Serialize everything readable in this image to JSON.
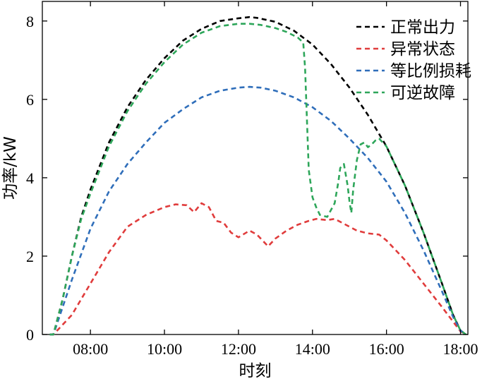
{
  "chart_data": {
    "type": "line",
    "xlabel": "时刻",
    "ylabel": "功率/kW",
    "xlim": [
      6.7,
      18.2
    ],
    "ylim": [
      0,
      8.5
    ],
    "xticks": [
      8,
      10,
      12,
      14,
      16,
      18
    ],
    "xtick_labels": [
      "08:00",
      "10:00",
      "12:00",
      "14:00",
      "16:00",
      "18:00"
    ],
    "yticks": [
      0,
      2,
      4,
      6,
      8
    ],
    "ytick_labels": [
      "0",
      "2",
      "4",
      "6",
      "8"
    ],
    "grid": false,
    "legend_position": "top-right",
    "series": [
      {
        "name": "正常出力",
        "color": "#000000",
        "x": [
          6.9,
          7.0,
          7.25,
          7.5,
          7.75,
          8.0,
          8.5,
          9.0,
          9.5,
          10.0,
          10.5,
          11.0,
          11.5,
          12.0,
          12.3,
          12.5,
          13.0,
          13.5,
          14.0,
          14.5,
          15.0,
          15.5,
          16.0,
          16.5,
          17.0,
          17.5,
          17.8,
          18.0,
          18.15
        ],
        "y": [
          0.0,
          0.0,
          0.9,
          2.0,
          3.0,
          3.7,
          4.9,
          5.8,
          6.5,
          7.05,
          7.5,
          7.8,
          8.0,
          8.07,
          8.1,
          8.08,
          7.98,
          7.75,
          7.4,
          6.9,
          6.3,
          5.6,
          4.8,
          3.8,
          2.6,
          1.3,
          0.5,
          0.1,
          0.0
        ]
      },
      {
        "name": "异常状态",
        "color": "#e03c3c",
        "x": [
          6.9,
          7.0,
          7.5,
          8.0,
          8.5,
          9.0,
          9.5,
          10.0,
          10.3,
          10.6,
          10.8,
          11.0,
          11.2,
          11.4,
          11.6,
          11.8,
          12.0,
          12.3,
          12.5,
          12.8,
          13.0,
          13.3,
          13.6,
          13.9,
          14.1,
          14.4,
          14.6,
          14.9,
          15.2,
          15.5,
          15.8,
          16.0,
          16.5,
          17.0,
          17.5,
          18.0,
          18.15
        ],
        "y": [
          0.0,
          0.0,
          0.5,
          1.3,
          2.1,
          2.75,
          3.05,
          3.25,
          3.32,
          3.3,
          3.12,
          3.35,
          3.25,
          2.9,
          2.85,
          2.6,
          2.48,
          2.65,
          2.55,
          2.25,
          2.45,
          2.65,
          2.8,
          2.9,
          2.95,
          2.92,
          2.95,
          2.8,
          2.65,
          2.58,
          2.55,
          2.4,
          1.9,
          1.3,
          0.7,
          0.08,
          0.0
        ]
      },
      {
        "name": "等比例损耗",
        "color": "#2f6eba",
        "x": [
          6.9,
          7.0,
          7.5,
          8.0,
          8.5,
          9.0,
          9.5,
          10.0,
          10.5,
          11.0,
          11.5,
          12.0,
          12.3,
          12.6,
          13.0,
          13.5,
          14.0,
          14.5,
          15.0,
          15.5,
          16.0,
          16.5,
          17.0,
          17.5,
          17.8,
          18.0,
          18.15
        ],
        "y": [
          0.0,
          0.0,
          1.4,
          2.7,
          3.65,
          4.35,
          4.9,
          5.4,
          5.75,
          6.05,
          6.22,
          6.3,
          6.32,
          6.3,
          6.22,
          6.05,
          5.8,
          5.45,
          5.0,
          4.5,
          3.9,
          3.1,
          2.15,
          1.1,
          0.45,
          0.1,
          0.0
        ]
      },
      {
        "name": "可逆故障",
        "color": "#2ea65a",
        "x": [
          6.9,
          7.0,
          7.25,
          7.5,
          7.75,
          8.0,
          8.5,
          9.0,
          9.5,
          10.0,
          10.5,
          11.0,
          11.5,
          12.0,
          12.3,
          12.6,
          13.0,
          13.3,
          13.6,
          13.75,
          13.8,
          13.85,
          13.9,
          14.0,
          14.1,
          14.2,
          14.4,
          14.6,
          14.7,
          14.75,
          14.85,
          14.95,
          15.0,
          15.05,
          15.1,
          15.2,
          15.3,
          15.4,
          15.5,
          15.6,
          15.7,
          15.8,
          16.0,
          16.5,
          17.0,
          17.5,
          17.8,
          18.0,
          18.15
        ],
        "y": [
          0.0,
          0.0,
          0.9,
          2.0,
          2.95,
          3.6,
          4.8,
          5.7,
          6.4,
          6.95,
          7.4,
          7.7,
          7.87,
          7.93,
          7.93,
          7.9,
          7.82,
          7.72,
          7.58,
          7.45,
          6.8,
          5.5,
          4.2,
          3.5,
          3.25,
          3.05,
          3.0,
          3.35,
          3.9,
          4.25,
          4.35,
          3.8,
          3.4,
          3.1,
          3.7,
          4.45,
          4.85,
          4.9,
          4.78,
          4.85,
          4.95,
          5.0,
          4.8,
          3.8,
          2.6,
          1.3,
          0.5,
          0.1,
          0.0
        ]
      }
    ]
  }
}
